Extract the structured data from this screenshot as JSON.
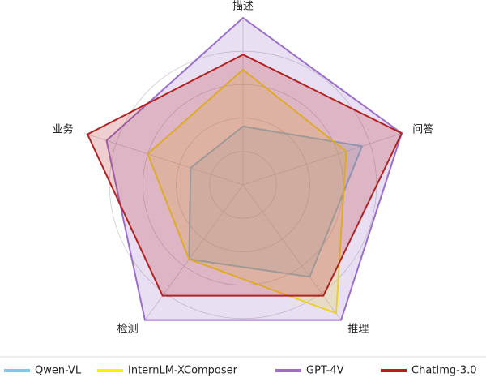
{
  "chart_data": {
    "type": "radar",
    "categories": [
      "描述",
      "问答",
      "推理",
      "检测",
      "业务"
    ],
    "rlim": [
      0,
      100
    ],
    "rticks": [
      20,
      40,
      60,
      80
    ],
    "grid": true,
    "series": [
      {
        "name": "Qwen-VL",
        "color": "#7ec8e3",
        "values": [
          35,
          75,
          68,
          55,
          33
        ]
      },
      {
        "name": "InternLM-XComposer",
        "color": "#ffee00",
        "values": [
          69,
          65,
          95,
          55,
          60
        ]
      },
      {
        "name": "GPT-4V",
        "color": "#9b6fc9",
        "values": [
          100,
          100,
          100,
          100,
          86
        ]
      },
      {
        "name": "ChatImg-3.0",
        "color": "#b22222",
        "values": [
          78,
          100,
          82,
          82,
          98
        ]
      }
    ]
  }
}
